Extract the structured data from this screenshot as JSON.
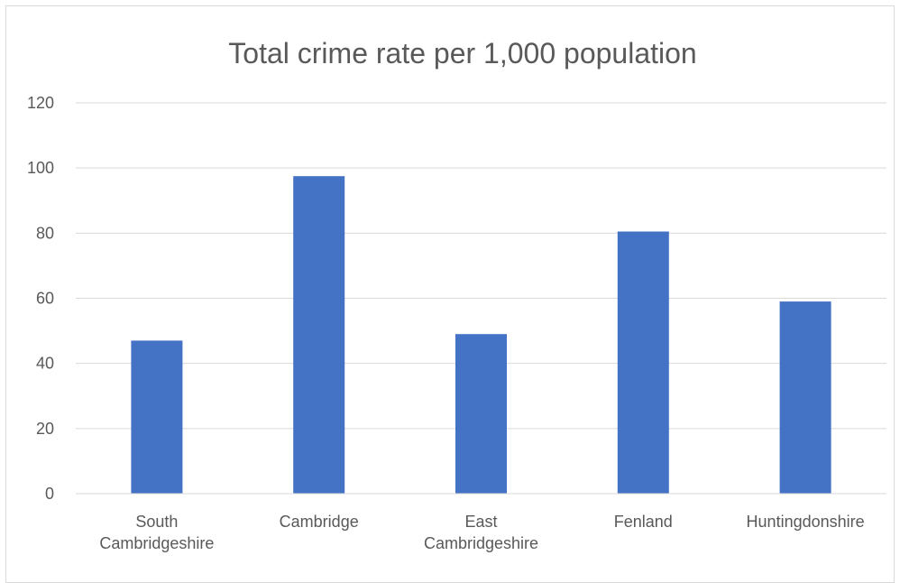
{
  "chart_data": {
    "type": "bar",
    "title": "Total crime rate per 1,000 population",
    "categories": [
      [
        "South",
        "Cambridgeshire"
      ],
      [
        "Cambridge"
      ],
      [
        "East",
        "Cambridgeshire"
      ],
      [
        "Fenland"
      ],
      [
        "Huntingdonshire"
      ]
    ],
    "values": [
      47,
      97.5,
      49,
      80.5,
      59
    ],
    "ylim": [
      0,
      120
    ],
    "yticks": [
      0,
      20,
      40,
      60,
      80,
      100,
      120
    ],
    "xlabel": "",
    "ylabel": "",
    "grid": true,
    "legend": "none",
    "colors": {
      "bar": "#4472C4",
      "grid": "#d9d9d9",
      "text": "#595959"
    }
  }
}
